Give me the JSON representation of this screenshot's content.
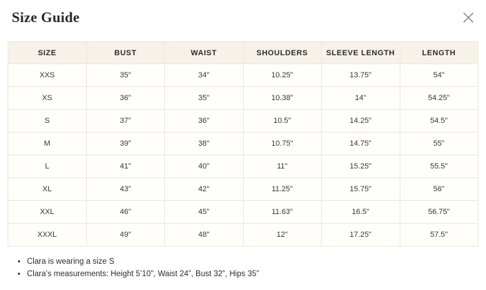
{
  "modal": {
    "title": "Size Guide"
  },
  "icons": {
    "close": "close-x"
  },
  "table": {
    "headers": [
      "SIZE",
      "BUST",
      "WAIST",
      "SHOULDERS",
      "SLEEVE LENGTH",
      "LENGTH"
    ],
    "rows": [
      [
        "XXS",
        "35\"",
        "34\"",
        "10.25\"",
        "13.75\"",
        "54\""
      ],
      [
        "XS",
        "36\"",
        "35\"",
        "10.38\"",
        "14\"",
        "54.25\""
      ],
      [
        "S",
        "37\"",
        "36\"",
        "10.5\"",
        "14.25\"",
        "54.5\""
      ],
      [
        "M",
        "39\"",
        "38\"",
        "10.75\"",
        "14.75\"",
        "55\""
      ],
      [
        "L",
        "41\"",
        "40\"",
        "11\"",
        "15.25\"",
        "55.5\""
      ],
      [
        "XL",
        "43\"",
        "42\"",
        "11.25\"",
        "15.75\"",
        "56\""
      ],
      [
        "XXL",
        "46\"",
        "45\"",
        "11.63\"",
        "16.5\"",
        "56.75\""
      ],
      [
        "XXXL",
        "49\"",
        "48\"",
        "12\"",
        "17.25\"",
        "57.5\""
      ]
    ]
  },
  "notes": [
    "Clara is wearing a size S",
    "Clara’s measurements: Height 5’10”, Waist 24”, Bust 32”, Hips 35”"
  ],
  "colors": {
    "header_bg": "#f7f2e9",
    "border": "#ece7dc",
    "title": "#262a30",
    "text": "#36363a"
  }
}
